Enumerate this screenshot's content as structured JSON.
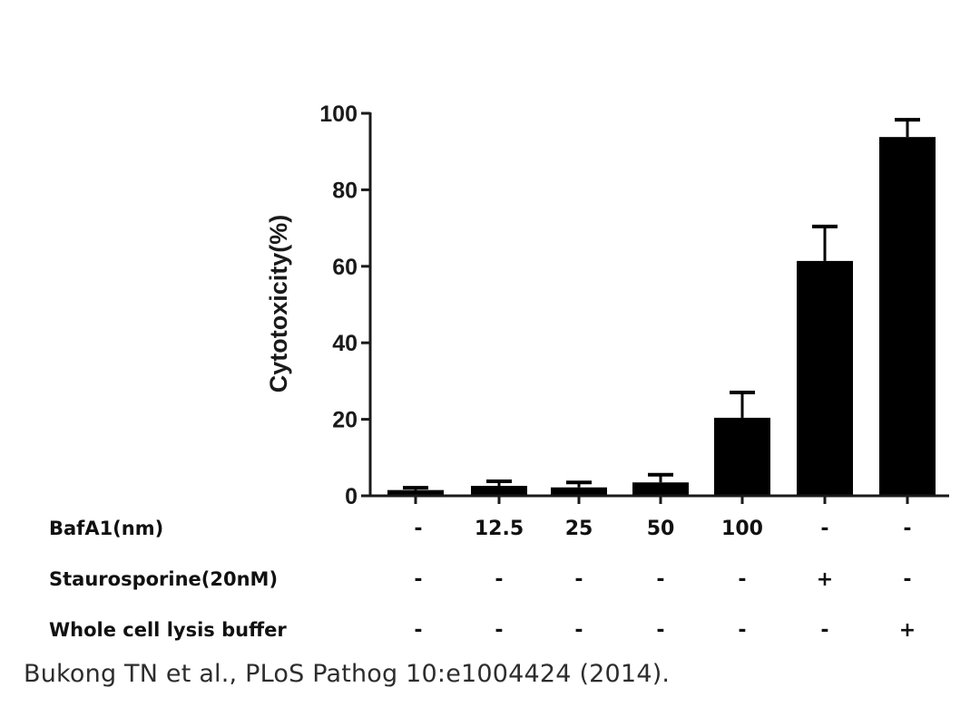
{
  "chart_data": {
    "type": "bar",
    "title": "",
    "xlabel": "",
    "ylabel": "Cytotoxicity(%)",
    "ylim": [
      0,
      100
    ],
    "yticks": [
      0,
      20,
      40,
      60,
      80,
      100
    ],
    "grid": false,
    "legend": null,
    "categories": [
      "BafA1 -",
      "BafA1 12.5",
      "BafA1 25",
      "BafA1 50",
      "BafA1 100",
      "Staurosporine +",
      "Whole cell lysis buffer +"
    ],
    "values": [
      1.5,
      2.6,
      2.2,
      3.5,
      20.4,
      61.4,
      93.8
    ],
    "error_upper": [
      0.6,
      1.2,
      1.3,
      2.0,
      6.6,
      9.0,
      4.5
    ],
    "bar_color": "#000000",
    "condition_table": {
      "rows": [
        {
          "label": "BafA1(nm)",
          "values": [
            "-",
            "12.5",
            "25",
            "50",
            "100",
            "-",
            "-"
          ]
        },
        {
          "label": "Staurosporine(20nM)",
          "values": [
            "-",
            "-",
            "-",
            "-",
            "-",
            "+",
            "-"
          ]
        },
        {
          "label": "Whole cell lysis buffer",
          "values": [
            "-",
            "-",
            "-",
            "-",
            "-",
            "-",
            "+"
          ]
        }
      ]
    }
  },
  "citation": "Bukong TN et al., PLoS Pathog 10:e1004424 (2014)."
}
